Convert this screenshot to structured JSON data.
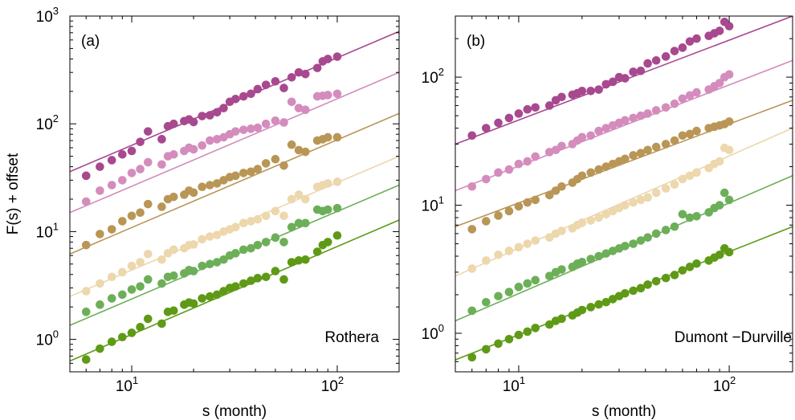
{
  "chart_data": [
    {
      "type": "scatter",
      "panel_label": "(a)",
      "station": "Rothera",
      "xlabel": "s (month)",
      "ylabel": "F(s) + offset",
      "xscale": "log",
      "yscale": "log",
      "xlim": [
        5,
        200
      ],
      "ylim": [
        0.5,
        1000
      ],
      "x_ticks": [
        {
          "base": "10",
          "exp": "1",
          "value": 10
        },
        {
          "base": "10",
          "exp": "2",
          "value": 100
        }
      ],
      "y_ticks": [
        {
          "base": "10",
          "exp": "0",
          "value": 1
        },
        {
          "base": "10",
          "exp": "1",
          "value": 10
        },
        {
          "base": "10",
          "exp": "2",
          "value": 100
        },
        {
          "base": "10",
          "exp": "3",
          "value": 1000
        }
      ],
      "x": [
        6,
        7,
        8,
        9,
        10,
        11,
        12,
        14,
        15,
        16,
        18,
        19,
        20,
        22,
        24,
        26,
        28,
        30,
        32,
        35,
        38,
        41,
        45,
        50,
        55,
        60,
        65,
        70,
        80,
        85,
        90,
        100
      ],
      "series": [
        {
          "name": "",
          "color": "#a8488f",
          "fit": [
            [
              5,
              36
            ],
            [
              200,
              720
            ]
          ],
          "values": [
            33,
            40,
            46,
            52,
            56,
            68,
            85,
            72,
            95,
            100,
            106,
            110,
            104,
            118,
            120,
            128,
            140,
            160,
            170,
            180,
            190,
            210,
            230,
            248,
            215,
            270,
            300,
            290,
            330,
            380,
            400,
            420
          ]
        },
        {
          "name": "",
          "color": "#d48cbd",
          "fit": [
            [
              5,
              15
            ],
            [
              200,
              300
            ]
          ],
          "values": [
            19,
            24,
            27,
            30,
            35,
            38,
            44,
            42,
            50,
            52,
            56,
            60,
            58,
            63,
            70,
            72,
            75,
            80,
            85,
            88,
            90,
            92,
            100,
            107,
            103,
            160,
            140,
            135,
            180,
            182,
            185,
            190
          ]
        },
        {
          "name": "",
          "color": "#b99656",
          "fit": [
            [
              5,
              6.2
            ],
            [
              200,
              125
            ]
          ],
          "values": [
            7.5,
            9.5,
            10.5,
            12.5,
            14,
            15,
            18,
            17,
            20,
            21,
            22,
            24,
            23,
            26,
            27,
            28,
            30,
            32,
            33,
            35,
            36,
            38,
            43,
            47,
            41,
            64,
            57,
            55,
            70,
            72,
            75,
            75
          ]
        },
        {
          "name": "",
          "color": "#edd7ac",
          "fit": [
            [
              5,
              2.5
            ],
            [
              200,
              50
            ]
          ],
          "values": [
            2.8,
            3.3,
            3.8,
            4.2,
            4.8,
            5.2,
            6.2,
            5.5,
            6.3,
            6.8,
            7,
            7.5,
            7.6,
            8.5,
            9,
            9.3,
            10,
            10.5,
            11,
            12,
            12.5,
            13,
            14,
            15.5,
            14,
            20,
            22,
            20,
            26,
            27,
            28,
            29
          ]
        },
        {
          "name": "",
          "color": "#6caf58",
          "fit": [
            [
              5,
              1.35
            ],
            [
              200,
              27
            ]
          ],
          "values": [
            1.8,
            2.1,
            2.4,
            2.6,
            2.9,
            3.1,
            3.6,
            3.3,
            3.8,
            3.9,
            4.1,
            4.4,
            4.3,
            4.8,
            5,
            5.2,
            5.5,
            6,
            6.3,
            6.8,
            7,
            7.5,
            8,
            8.8,
            8,
            11,
            12,
            12,
            16,
            15.5,
            16,
            16.5
          ]
        },
        {
          "name": "",
          "color": "#5e9a16",
          "fit": [
            [
              5,
              0.63
            ],
            [
              200,
              12.8
            ]
          ],
          "values": [
            0.65,
            0.82,
            0.95,
            1.05,
            1.15,
            1.3,
            1.55,
            1.4,
            1.8,
            1.85,
            2.1,
            2.2,
            2.15,
            2.4,
            2.5,
            2.6,
            2.8,
            3.0,
            3.1,
            3.3,
            3.5,
            3.7,
            3.8,
            4.3,
            3.6,
            5.2,
            5.4,
            5.5,
            6.5,
            7.5,
            8.0,
            9.2
          ]
        }
      ]
    },
    {
      "type": "scatter",
      "panel_label": "(b)",
      "station": "Dumont −Durville",
      "xlabel": "s (month)",
      "ylabel": "",
      "xscale": "log",
      "yscale": "log",
      "xlim": [
        5,
        200
      ],
      "ylim": [
        0.5,
        300
      ],
      "x_ticks": [
        {
          "base": "10",
          "exp": "1",
          "value": 10
        },
        {
          "base": "10",
          "exp": "2",
          "value": 100
        }
      ],
      "y_ticks": [
        {
          "base": "10",
          "exp": "0",
          "value": 1
        },
        {
          "base": "10",
          "exp": "1",
          "value": 10
        },
        {
          "base": "10",
          "exp": "2",
          "value": 100
        }
      ],
      "x": [
        6,
        7,
        8,
        9,
        10,
        11,
        12,
        14,
        15,
        16,
        18,
        19,
        20,
        22,
        24,
        26,
        28,
        30,
        32,
        35,
        38,
        41,
        45,
        50,
        55,
        60,
        65,
        70,
        80,
        85,
        90,
        95,
        100
      ],
      "series": [
        {
          "name": "",
          "color": "#a8488f",
          "fit": [
            [
              5,
              30
            ],
            [
              200,
              300
            ]
          ],
          "values": [
            35,
            40,
            44,
            48,
            52,
            56,
            58,
            60,
            66,
            70,
            73,
            75,
            78,
            78,
            80,
            88,
            92,
            100,
            98,
            110,
            112,
            128,
            135,
            145,
            160,
            170,
            190,
            200,
            210,
            220,
            230,
            270,
            250
          ]
        },
        {
          "name": "",
          "color": "#d48cbd",
          "fit": [
            [
              5,
              13
            ],
            [
              200,
              135
            ]
          ],
          "values": [
            14,
            16,
            18,
            19,
            21,
            22,
            24,
            26,
            27,
            29,
            30,
            32,
            34,
            35,
            38,
            40,
            42,
            44,
            46,
            48,
            50,
            52,
            55,
            58,
            62,
            68,
            72,
            76,
            80,
            85,
            90,
            100,
            105
          ]
        },
        {
          "name": "",
          "color": "#b99656",
          "fit": [
            [
              5,
              6.8
            ],
            [
              200,
              66
            ]
          ],
          "values": [
            6.5,
            7.5,
            8.3,
            9,
            9.8,
            10.5,
            11,
            12,
            13,
            14,
            15,
            16,
            17,
            18,
            19,
            20,
            21,
            22,
            23,
            24.5,
            25.5,
            27,
            28.5,
            30,
            32,
            35,
            36,
            38,
            40,
            41,
            42,
            43,
            45
          ]
        },
        {
          "name": "",
          "color": "#edd7ac",
          "fit": [
            [
              5,
              2.8
            ],
            [
              200,
              40
            ]
          ],
          "values": [
            3.2,
            3.7,
            4.1,
            4.4,
            4.7,
            5,
            5.3,
            5.6,
            6,
            6.3,
            6.6,
            7,
            7.3,
            7.6,
            8,
            8.5,
            9,
            9.5,
            10,
            10.5,
            11,
            11.5,
            12.5,
            13.5,
            14.5,
            16,
            17,
            18,
            19.5,
            21,
            22,
            28,
            27
          ]
        },
        {
          "name": "",
          "color": "#6caf58",
          "fit": [
            [
              5,
              1.25
            ],
            [
              200,
              17
            ]
          ],
          "values": [
            1.5,
            1.75,
            1.95,
            2.1,
            2.3,
            2.45,
            2.6,
            2.8,
            3,
            3.15,
            3.3,
            3.5,
            3.6,
            3.8,
            4,
            4.2,
            4.4,
            4.6,
            4.8,
            5,
            5.3,
            5.6,
            6,
            6.4,
            6.8,
            8.5,
            8,
            8.2,
            8.8,
            9.5,
            10,
            12.5,
            11
          ]
        },
        {
          "name": "",
          "color": "#5e9a16",
          "fit": [
            [
              5,
              0.62
            ],
            [
              200,
              6.8
            ]
          ],
          "values": [
            0.65,
            0.75,
            0.83,
            0.9,
            0.97,
            1.03,
            1.1,
            1.17,
            1.25,
            1.3,
            1.38,
            1.45,
            1.52,
            1.6,
            1.68,
            1.75,
            1.85,
            1.95,
            2.05,
            2.15,
            2.25,
            2.4,
            2.55,
            2.7,
            2.85,
            3.1,
            3.3,
            3.5,
            3.7,
            3.9,
            4.1,
            4.6,
            4.3
          ]
        }
      ]
    }
  ]
}
